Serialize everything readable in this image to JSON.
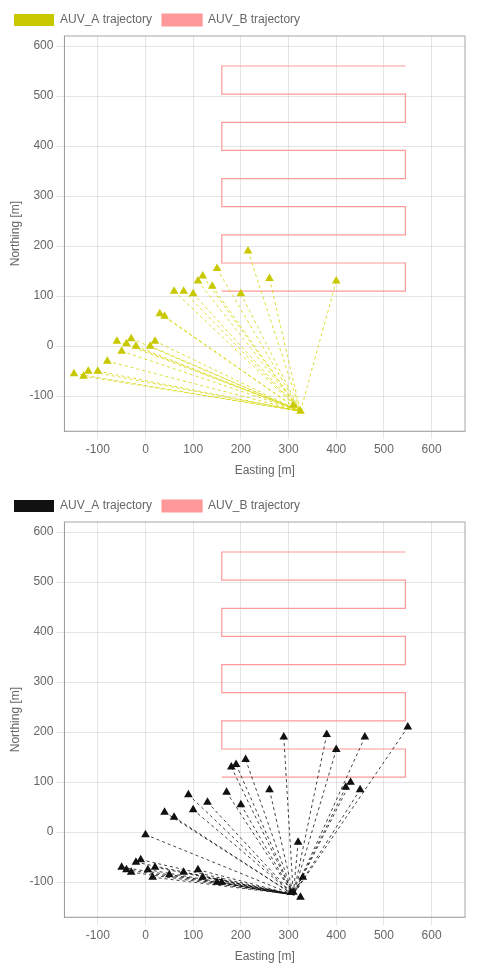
{
  "chart_data": [
    {
      "type": "scatter",
      "xlabel": "Easting [m]",
      "ylabel": "Northing [m]",
      "xlim": [
        -170,
        670
      ],
      "ylim": [
        -170,
        620
      ],
      "xticks": [
        -100,
        0,
        100,
        200,
        300,
        400,
        500,
        600
      ],
      "yticks": [
        -100,
        0,
        100,
        200,
        300,
        400,
        500,
        600
      ],
      "grid": true,
      "legend": "upper left",
      "series": [
        {
          "name": "AUV_A trajectory",
          "color": "#c8c800",
          "marker": "triangle",
          "x": [
            -150,
            -130,
            -120,
            -100,
            -80,
            -60,
            -50,
            -40,
            -30,
            -20,
            10,
            20,
            30,
            40,
            60,
            80,
            100,
            110,
            120,
            140,
            150,
            200,
            215,
            260,
            310,
            325,
            400
          ],
          "y": [
            -55,
            -60,
            -50,
            -50,
            -30,
            10,
            -10,
            5,
            15,
            0,
            0,
            10,
            65,
            60,
            110,
            110,
            105,
            130,
            140,
            120,
            155,
            105,
            190,
            135,
            -118,
            -130,
            130
          ],
          "links": {
            "to": [
              325,
              -130
            ],
            "color": "#d4d400",
            "line_style": "dashed"
          }
        },
        {
          "name": "AUV_B trajectory",
          "color": "#ff9999",
          "type": "line",
          "line_style": "solid",
          "x": [
            160,
            545,
            545,
            160,
            160,
            545,
            545,
            160,
            160,
            545,
            545,
            160,
            160,
            545,
            545,
            160,
            160,
            545
          ],
          "y": [
            110,
            110,
            166.25,
            166.25,
            222.5,
            222.5,
            278.75,
            278.75,
            335,
            335,
            391.25,
            391.25,
            447.5,
            447.5,
            503.75,
            503.75,
            560,
            560
          ]
        }
      ]
    },
    {
      "type": "scatter",
      "xlabel": "Easting [m]",
      "ylabel": "Northing [m]",
      "xlim": [
        -170,
        670
      ],
      "ylim": [
        -170,
        620
      ],
      "xticks": [
        -100,
        0,
        100,
        200,
        300,
        400,
        500,
        600
      ],
      "yticks": [
        -100,
        0,
        100,
        200,
        300,
        400,
        500,
        600
      ],
      "grid": true,
      "legend": "upper left",
      "series": [
        {
          "name": "AUV_A trajectory",
          "color": "#111111",
          "marker": "triangle",
          "x": [
            -50,
            -40,
            -30,
            -20,
            -10,
            0,
            5,
            15,
            20,
            40,
            50,
            60,
            80,
            90,
            100,
            110,
            120,
            130,
            150,
            160,
            170,
            180,
            190,
            200,
            210,
            260,
            290,
            305,
            310,
            320,
            325,
            330,
            380,
            400,
            420,
            430,
            450,
            460,
            550
          ],
          "y": [
            -70,
            -75,
            -80,
            -60,
            -55,
            -5,
            -75,
            -90,
            -70,
            40,
            -85,
            30,
            -80,
            75,
            45,
            -75,
            -90,
            60,
            -100,
            -100,
            80,
            130,
            135,
            55,
            145,
            85,
            190,
            -120,
            -120,
            -20,
            -130,
            -90,
            195,
            165,
            90,
            100,
            85,
            190,
            210
          ],
          "links": {
            "to": [
              310,
              -125
            ],
            "color": "#111111",
            "line_style": "dashed"
          }
        },
        {
          "name": "AUV_B trajectory",
          "color": "#ff9999",
          "type": "line",
          "line_style": "solid",
          "x": [
            160,
            545,
            545,
            160,
            160,
            545,
            545,
            160,
            160,
            545,
            545,
            160,
            160,
            545,
            545,
            160,
            160,
            545
          ],
          "y": [
            110,
            110,
            166.25,
            166.25,
            222.5,
            222.5,
            278.75,
            278.75,
            335,
            335,
            391.25,
            391.25,
            447.5,
            447.5,
            503.75,
            503.75,
            560,
            560
          ]
        }
      ]
    }
  ]
}
